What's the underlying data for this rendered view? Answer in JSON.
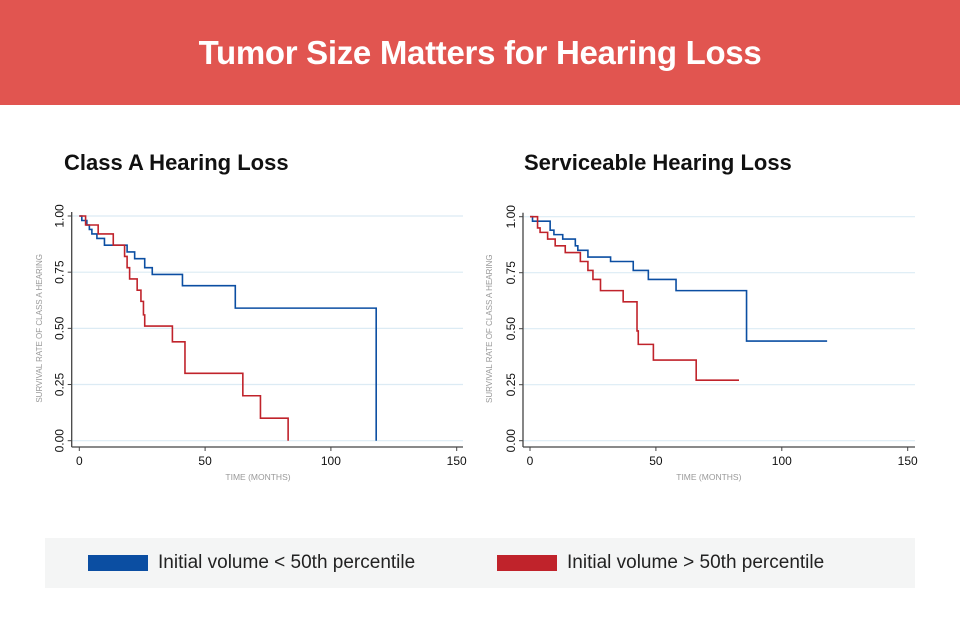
{
  "header": {
    "title": "Tumor Size Matters for Hearing Loss"
  },
  "colors": {
    "header_bg": "#e15550",
    "series_low": "#0b4ea2",
    "series_high": "#c0232b",
    "grid": "#dcebf4"
  },
  "legend": {
    "items": [
      {
        "label": "Initial volume < 50th percentile",
        "color": "#0b4ea2"
      },
      {
        "label": "Initial volume > 50th percentile",
        "color": "#c0232b"
      }
    ]
  },
  "chart_data": [
    {
      "type": "line",
      "step": true,
      "title": "Class A Hearing Loss",
      "xlabel": "TIME (MONTHS)",
      "ylabel": "SURVIVAL RATE OF CLASS A HEARING",
      "xlim": [
        0,
        150
      ],
      "ylim": [
        0,
        1
      ],
      "xticks": [
        "0",
        "50",
        "100",
        "150"
      ],
      "yticks": [
        "0.00",
        "0.25",
        "0.50",
        "0.75",
        "1.00"
      ],
      "grid": true,
      "series": [
        {
          "name": "Initial volume < 50th percentile",
          "color": "#0b4ea2",
          "points": [
            [
              0,
              1.0
            ],
            [
              1,
              0.98
            ],
            [
              3,
              0.96
            ],
            [
              4,
              0.94
            ],
            [
              5,
              0.92
            ],
            [
              7,
              0.9
            ],
            [
              10,
              0.87
            ],
            [
              19,
              0.84
            ],
            [
              22,
              0.81
            ],
            [
              26,
              0.77
            ],
            [
              29,
              0.74
            ],
            [
              41,
              0.69
            ],
            [
              62,
              0.59
            ],
            [
              118,
              0.0
            ]
          ]
        },
        {
          "name": "Initial volume > 50th percentile",
          "color": "#c0232b",
          "points": [
            [
              0,
              1.0
            ],
            [
              2.5,
              0.96
            ],
            [
              7.5,
              0.92
            ],
            [
              13.5,
              0.87
            ],
            [
              18,
              0.82
            ],
            [
              19,
              0.77
            ],
            [
              20,
              0.72
            ],
            [
              23,
              0.67
            ],
            [
              24.5,
              0.62
            ],
            [
              25.5,
              0.56
            ],
            [
              26,
              0.51
            ],
            [
              37,
              0.44
            ],
            [
              42,
              0.3
            ],
            [
              65,
              0.2
            ],
            [
              72,
              0.1
            ],
            [
              83,
              0.0
            ]
          ]
        }
      ]
    },
    {
      "type": "line",
      "step": true,
      "title": "Serviceable Hearing Loss",
      "xlabel": "TIME (MONTHS)",
      "ylabel": "SURVIVAL RATE OF CLASS A HEARING",
      "xlim": [
        0,
        150
      ],
      "ylim": [
        0,
        1
      ],
      "xticks": [
        "0",
        "50",
        "100",
        "150"
      ],
      "yticks": [
        "0.00",
        "0.25",
        "0.50",
        "0.75",
        "1.00"
      ],
      "grid": true,
      "series": [
        {
          "name": "Initial volume < 50th percentile",
          "color": "#0b4ea2",
          "points": [
            [
              0,
              1.0
            ],
            [
              1,
              0.98
            ],
            [
              8,
              0.94
            ],
            [
              9.5,
              0.92
            ],
            [
              13,
              0.9
            ],
            [
              18,
              0.87
            ],
            [
              19,
              0.85
            ],
            [
              23,
              0.82
            ],
            [
              32,
              0.8
            ],
            [
              41,
              0.76
            ],
            [
              47,
              0.72
            ],
            [
              58,
              0.67
            ],
            [
              86,
              0.445
            ],
            [
              118,
              0.445
            ]
          ]
        },
        {
          "name": "Initial volume > 50th percentile",
          "color": "#c0232b",
          "points": [
            [
              0,
              1.0
            ],
            [
              3,
              0.95
            ],
            [
              4,
              0.93
            ],
            [
              7,
              0.9
            ],
            [
              10,
              0.87
            ],
            [
              14,
              0.84
            ],
            [
              20,
              0.8
            ],
            [
              23,
              0.76
            ],
            [
              25,
              0.72
            ],
            [
              28,
              0.67
            ],
            [
              37,
              0.62
            ],
            [
              42.5,
              0.49
            ],
            [
              43,
              0.43
            ],
            [
              49,
              0.36
            ],
            [
              66,
              0.27
            ],
            [
              83,
              0.27
            ]
          ]
        }
      ]
    }
  ]
}
